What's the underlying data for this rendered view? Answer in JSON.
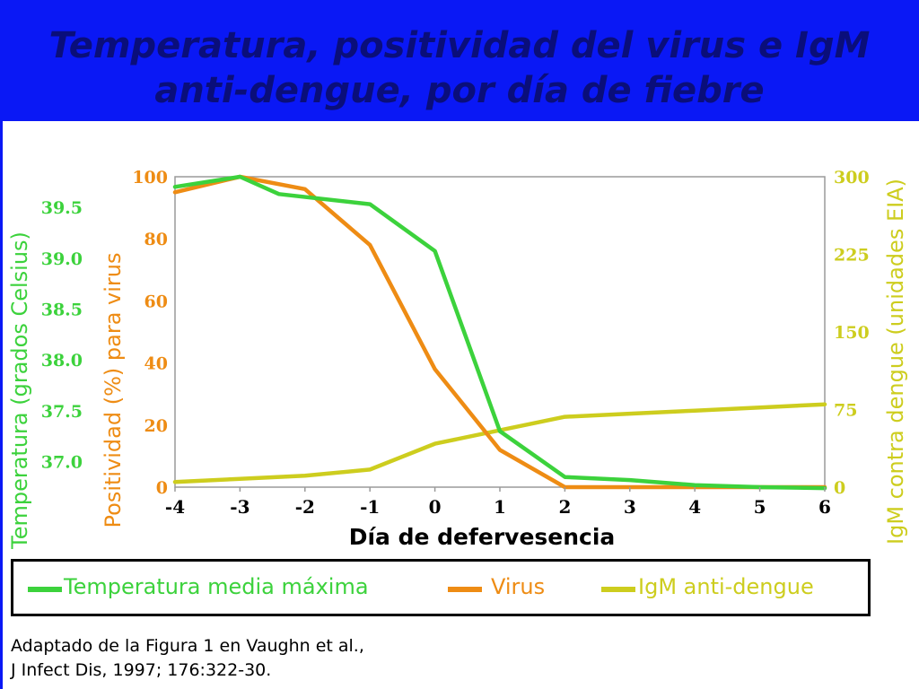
{
  "title": "Temperatura, positividad del virus e IgM\nanti-dengue, por día de fiebre",
  "colors": {
    "banner": "#0a18f5",
    "title": "#0a0e7a",
    "temperature": "#3cd23c",
    "virus": "#ee8c14",
    "igm": "#cdcd1e"
  },
  "chart_data": {
    "type": "line",
    "xlabel": "Día de defervesencia",
    "x": [
      -4,
      -3,
      -2,
      -1,
      0,
      1,
      2,
      3,
      4,
      5,
      6
    ],
    "x_ticks": [
      "-4",
      "-3",
      "-2",
      "-1",
      "0",
      "1",
      "2",
      "3",
      "4",
      "5",
      "6"
    ],
    "xlim": [
      -4,
      6
    ],
    "axes": {
      "temperature": {
        "label": "Temperatura (grados Celsius)",
        "position": "far-left",
        "ticks": [
          "39.5",
          "39.0",
          "38.5",
          "38.0",
          "37.5",
          "37.0"
        ],
        "tick_values": [
          39.5,
          39.0,
          38.5,
          38.0,
          37.5,
          37.0
        ],
        "ylim": [
          36.75,
          39.8
        ]
      },
      "virus": {
        "label": "Positividad (%) para virus",
        "position": "left",
        "ticks": [
          "100",
          "80",
          "60",
          "40",
          "20",
          "0"
        ],
        "tick_values": [
          100,
          80,
          60,
          40,
          20,
          0
        ],
        "ylim": [
          0,
          100
        ]
      },
      "igm": {
        "label": "IgM contra dengue (unidades EIA)",
        "position": "right",
        "ticks": [
          "300",
          "225",
          "150",
          "75",
          "0"
        ],
        "tick_values": [
          300,
          225,
          150,
          75,
          0
        ],
        "ylim": [
          0,
          300
        ]
      }
    },
    "series": [
      {
        "name": "Temperatura media máxima",
        "axis": "temperature",
        "color": "#3cd23c",
        "x": [
          -4,
          -3,
          -2.4,
          -1,
          0,
          1,
          2,
          3,
          4,
          5,
          6
        ],
        "values": [
          39.7,
          39.8,
          39.63,
          39.53,
          39.07,
          37.3,
          36.85,
          36.82,
          36.77,
          36.75,
          36.74
        ]
      },
      {
        "name": "Virus",
        "axis": "virus",
        "color": "#ee8c14",
        "x": [
          -4,
          -3,
          -2,
          -1,
          0,
          1,
          2,
          3,
          4,
          5,
          6
        ],
        "values": [
          95,
          100,
          96,
          78,
          38,
          12,
          0,
          0,
          0,
          0,
          0
        ]
      },
      {
        "name": "IgM anti-dengue",
        "axis": "igm",
        "color": "#cdcd1e",
        "x": [
          -4,
          -3,
          -2,
          -1,
          0,
          1,
          2,
          3,
          4,
          5,
          6
        ],
        "values": [
          5,
          8,
          11,
          17,
          42,
          55,
          68,
          71,
          74,
          77,
          80
        ]
      }
    ],
    "legend_placement": "bottom",
    "grid": false
  },
  "legend": [
    {
      "label": "Temperatura media máxima",
      "color": "#3cd23c"
    },
    {
      "label": "Virus",
      "color": "#ee8c14"
    },
    {
      "label": "IgM anti-dengue",
      "color": "#cdcd1e"
    }
  ],
  "citation": {
    "line1": "Adaptado de la Figura 1 en Vaughn et  al.,",
    "line2": "J Infect Dis, 1997; 176:322-30."
  }
}
